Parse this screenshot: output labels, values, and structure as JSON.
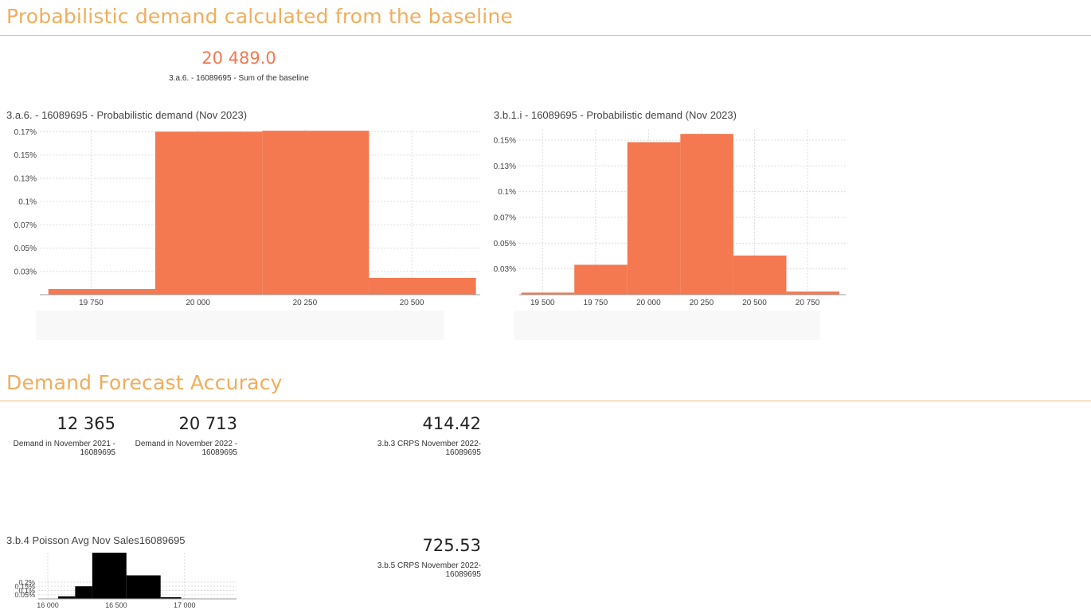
{
  "section1": {
    "title": "Probabilistic demand calculated from the baseline"
  },
  "kpi_baseline": {
    "value": "20 489.0",
    "label": "3.a.6. - 16089695 - Sum of the baseline"
  },
  "section2": {
    "title": "Demand Forecast Accuracy"
  },
  "kpis": {
    "demand_2021": {
      "value": "12 365",
      "label_line1": "Demand in November 2021 -",
      "label_line2": "16089695"
    },
    "demand_2022": {
      "value": "20 713",
      "label_line1": "Demand in November 2022 -",
      "label_line2": "16089695"
    },
    "crps_3b3": {
      "value": "414.42",
      "label_line1": "3.b.3 CRPS November 2022-",
      "label_line2": "16089695"
    },
    "crps_3b5": {
      "value": "725.53",
      "label_line1": "3.b.5 CRPS November 2022-",
      "label_line2": "16089695"
    }
  },
  "colors": {
    "accent": "#f0ad5c",
    "bar": "#f47850",
    "bar_black": "#000000",
    "kpi_highlight": "#f47850"
  },
  "chart_data": [
    {
      "id": "chart1",
      "type": "bar",
      "title": "3.a.6. - 16089695 - Probabilistic demand (Nov 2023)",
      "bins": [
        {
          "from": 19650,
          "to": 19900,
          "value": 6e-05
        },
        {
          "from": 19900,
          "to": 20150,
          "value": 0.00175
        },
        {
          "from": 20150,
          "to": 20400,
          "value": 0.00176
        },
        {
          "from": 20400,
          "to": 20650,
          "value": 0.00018
        }
      ],
      "xlim": [
        19630,
        20660
      ],
      "ylim": [
        0,
        0.00177
      ],
      "xticks": [
        19750,
        20000,
        20250,
        20500
      ],
      "xtick_labels": [
        "19 750",
        "20 000",
        "20 250",
        "20 500"
      ],
      "yticks": [
        0.00025,
        0.0005,
        0.00075,
        0.001,
        0.00125,
        0.0015,
        0.00175
      ],
      "ytick_labels": [
        "0.03%",
        "0.05%",
        "0.07%",
        "0.1%",
        "0.13%",
        "0.15%",
        "0.17%"
      ]
    },
    {
      "id": "chart2",
      "type": "bar",
      "title": "3.b.1.i - 16089695 - Probabilistic demand (Nov 2023)",
      "bins": [
        {
          "from": 19400,
          "to": 19650,
          "value": 2e-05
        },
        {
          "from": 19650,
          "to": 19900,
          "value": 0.00029
        },
        {
          "from": 19900,
          "to": 20150,
          "value": 0.00148
        },
        {
          "from": 20150,
          "to": 20400,
          "value": 0.00156
        },
        {
          "from": 20400,
          "to": 20650,
          "value": 0.00038
        },
        {
          "from": 20650,
          "to": 20900,
          "value": 3e-05
        }
      ],
      "xlim": [
        19390,
        20930
      ],
      "ylim": [
        0,
        0.0016
      ],
      "xticks": [
        19500,
        19750,
        20000,
        20250,
        20500,
        20750
      ],
      "xtick_labels": [
        "19 500",
        "19 750",
        "20 000",
        "20 250",
        "20 500",
        "20 750"
      ],
      "yticks": [
        0.00025,
        0.0005,
        0.00075,
        0.001,
        0.00125,
        0.0015
      ],
      "ytick_labels": [
        "0.03%",
        "0.05%",
        "0.07%",
        "0.1%",
        "0.13%",
        "0.15%"
      ]
    },
    {
      "id": "chart3",
      "type": "bar",
      "title": "3.b.4 Poisson Avg Nov Sales16089695",
      "bins": [
        {
          "from": 16075,
          "to": 16200,
          "value": 0.0003
        },
        {
          "from": 16200,
          "to": 16325,
          "value": 0.0015
        },
        {
          "from": 16325,
          "to": 16575,
          "value": 0.0055
        },
        {
          "from": 16575,
          "to": 16825,
          "value": 0.0028
        },
        {
          "from": 16825,
          "to": 16975,
          "value": 0.0002
        },
        {
          "from": 16975,
          "to": 17075,
          "value": 5e-05
        }
      ],
      "xlim": [
        15930,
        17380
      ],
      "ylim": [
        0,
        0.0055
      ],
      "xticks": [
        16000,
        16500,
        17000
      ],
      "xtick_labels": [
        "16 000",
        "16 500",
        "17 000"
      ],
      "yticks": [
        0.0005,
        0.001,
        0.0015,
        0.002
      ],
      "ytick_labels": [
        "0.05%",
        "0.1%",
        "0.15%",
        "0.2%"
      ]
    }
  ]
}
